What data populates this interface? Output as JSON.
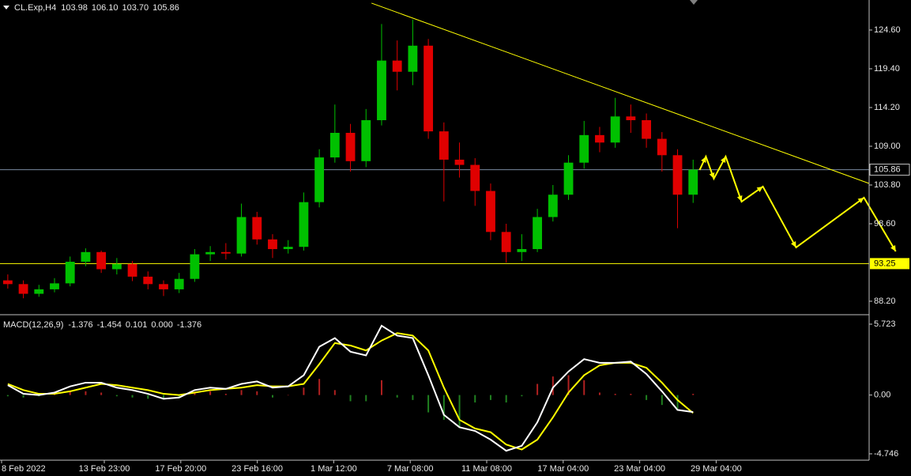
{
  "chart_data": {
    "type": "candlestick",
    "symbol": "CL.Exp,H4",
    "ohlc_readout": [
      {
        "value": 103.98,
        "label": "103.98"
      },
      {
        "value": 106.1,
        "label": "106.10"
      },
      {
        "value": 103.7,
        "label": "103.70"
      },
      {
        "value": 105.86,
        "label": "105.86"
      }
    ],
    "x_labels": [
      "8 Feb 2022",
      "13 Feb 23:00",
      "17 Feb 20:00",
      "23 Feb 16:00",
      "1 Mar 12:00",
      "7 Mar 08:00",
      "11 Mar 08:00",
      "17 Mar 04:00",
      "23 Mar 04:00",
      "29 Mar 04:00"
    ],
    "xlim": [
      -0.5,
      55.3
    ],
    "open": [
      91.0,
      90.5,
      89.2,
      89.8,
      90.6,
      93.5,
      94.8,
      92.5,
      93.2,
      91.5,
      90.5,
      89.8,
      91.2,
      94.5,
      94.8,
      94.6,
      99.5,
      96.5,
      95.2,
      95.5,
      101.5,
      107.5,
      110.8,
      107.0,
      112.5,
      120.5,
      119.0,
      122.5,
      111.0,
      107.2,
      106.5,
      103.0,
      97.5,
      94.8,
      95.2,
      99.5,
      102.5,
      106.8,
      110.5,
      109.5,
      113.0,
      112.5,
      110.0,
      107.8,
      102.5
    ],
    "high": [
      91.8,
      91.0,
      90.4,
      91.3,
      94.2,
      95.3,
      95.0,
      94.0,
      93.6,
      92.2,
      91.0,
      92.0,
      95.2,
      95.6,
      96.0,
      101.3,
      100.2,
      97.2,
      96.4,
      102.8,
      108.6,
      114.6,
      112.0,
      114.0,
      125.4,
      123.2,
      126.0,
      123.4,
      112.2,
      109.5,
      107.4,
      104.0,
      98.6,
      97.2,
      100.6,
      103.8,
      107.8,
      112.4,
      111.6,
      115.5,
      114.6,
      113.4,
      110.9,
      108.6,
      107.2
    ],
    "low": [
      89.9,
      88.6,
      88.8,
      89.4,
      90.2,
      92.9,
      92.0,
      91.8,
      90.9,
      89.8,
      88.9,
      89.3,
      90.8,
      93.6,
      93.8,
      94.2,
      95.8,
      94.0,
      94.6,
      95.0,
      100.8,
      106.8,
      105.6,
      106.2,
      111.8,
      116.5,
      117.2,
      110.0,
      101.6,
      104.8,
      101.0,
      96.4,
      93.4,
      93.6,
      94.8,
      98.9,
      101.8,
      106.0,
      108.2,
      108.8,
      110.8,
      108.8,
      105.6,
      98.0,
      101.4
    ],
    "close": [
      90.5,
      89.2,
      89.8,
      90.6,
      93.5,
      94.8,
      92.5,
      93.2,
      91.5,
      90.5,
      89.8,
      91.2,
      94.5,
      94.8,
      94.6,
      99.5,
      96.5,
      95.2,
      95.5,
      101.5,
      107.5,
      110.8,
      107.0,
      112.5,
      120.5,
      119.0,
      122.5,
      111.0,
      107.2,
      106.5,
      103.0,
      97.5,
      94.8,
      95.2,
      99.5,
      102.5,
      106.8,
      110.5,
      109.5,
      113.0,
      112.5,
      110.0,
      107.8,
      102.5,
      105.86
    ],
    "up_color": "#00c000",
    "down_color": "#e00000",
    "ylim": [
      86.5,
      128.63
    ],
    "yticks": [
      {
        "value": 124.6,
        "label": "124.60"
      },
      {
        "value": 119.4,
        "label": "119.40"
      },
      {
        "value": 114.2,
        "label": "114.20"
      },
      {
        "value": 109,
        "label": "109.00"
      },
      {
        "value": 103.8,
        "label": "103.80"
      },
      {
        "value": 98.6,
        "label": "98.60"
      },
      {
        "value": 88.2,
        "label": "88.20"
      }
    ],
    "levels": [
      {
        "value": 105.86,
        "label": "105.86",
        "color": "#7a8aa0"
      },
      {
        "value": 93.25,
        "label": "93.25",
        "color": "#ffff00"
      }
    ],
    "trendline": {
      "x": [
        23.35,
        55.3
      ],
      "y": [
        128.21,
        104.01
      ],
      "color": "#ffff00"
    },
    "projection": {
      "x": [
        44.42,
        44.82,
        45.33,
        46.09,
        47.11,
        48.48,
        50.61,
        54.97,
        57.01
      ],
      "y": [
        105.82,
        107.62,
        104.65,
        107.62,
        101.57,
        103.59,
        95.42,
        102.1,
        94.89
      ],
      "color": "#ffff00"
    },
    "indicator": {
      "type": "macd",
      "name": "MACD(12,26,9)",
      "readout": [
        {
          "value": -1.376,
          "label": "-1.376"
        },
        {
          "value": -1.454,
          "label": "-1.454"
        },
        {
          "value": 0.101,
          "label": "0.101"
        },
        {
          "value": 0,
          "label": "0.000"
        },
        {
          "value": -1.376,
          "label": "-1.376"
        }
      ],
      "ylim": [
        -5.26,
        6.36
      ],
      "yticks": [
        5.723,
        {
          "value": 0,
          "label": "0.00"
        },
        -4.746
      ],
      "macd": {
        "color": "#ffffff",
        "values": [
          0.8,
          0.1,
          0.0,
          0.2,
          0.7,
          1.0,
          1.0,
          0.6,
          0.4,
          0.1,
          -0.3,
          -0.2,
          0.4,
          0.6,
          0.5,
          0.9,
          1.1,
          0.6,
          0.7,
          1.6,
          3.9,
          4.6,
          3.5,
          3.2,
          5.6,
          4.8,
          4.6,
          1.6,
          -1.6,
          -2.6,
          -2.9,
          -3.6,
          -4.5,
          -4.1,
          -2.2,
          0.6,
          1.9,
          2.9,
          2.6,
          2.6,
          2.7,
          1.7,
          0.3,
          -1.2,
          -1.376
        ]
      },
      "signal": {
        "color": "#ffff00",
        "values": [
          0.9,
          0.4,
          0.1,
          0.1,
          0.3,
          0.6,
          0.9,
          0.8,
          0.6,
          0.4,
          0.1,
          0.0,
          0.2,
          0.4,
          0.5,
          0.6,
          0.8,
          0.7,
          0.7,
          0.9,
          2.5,
          4.2,
          4.0,
          3.6,
          4.4,
          5.0,
          4.8,
          3.6,
          0.6,
          -2.0,
          -2.7,
          -3.0,
          -4.0,
          -4.4,
          -3.6,
          -1.8,
          0.2,
          1.6,
          2.4,
          2.6,
          2.6,
          2.2,
          1.0,
          -0.4,
          -1.454
        ]
      },
      "histogram": {
        "up_color": "#b02020",
        "down_color": "#208020",
        "values": [
          -0.1,
          -0.2,
          -0.1,
          0.1,
          0.3,
          0.3,
          0.2,
          -0.1,
          -0.2,
          -0.3,
          -0.3,
          -0.2,
          0.2,
          0.3,
          0.1,
          0.4,
          0.3,
          -0.2,
          0.0,
          0.6,
          1.3,
          0.4,
          -0.5,
          -0.5,
          1.2,
          -0.2,
          -0.4,
          -1.4,
          -2.0,
          -2.6,
          -0.6,
          -0.4,
          -0.6,
          -0.1,
          0.9,
          1.5,
          1.6,
          1.2,
          0.2,
          0.1,
          0.1,
          -0.4,
          -0.8,
          -1.1,
          0.101
        ]
      }
    }
  }
}
